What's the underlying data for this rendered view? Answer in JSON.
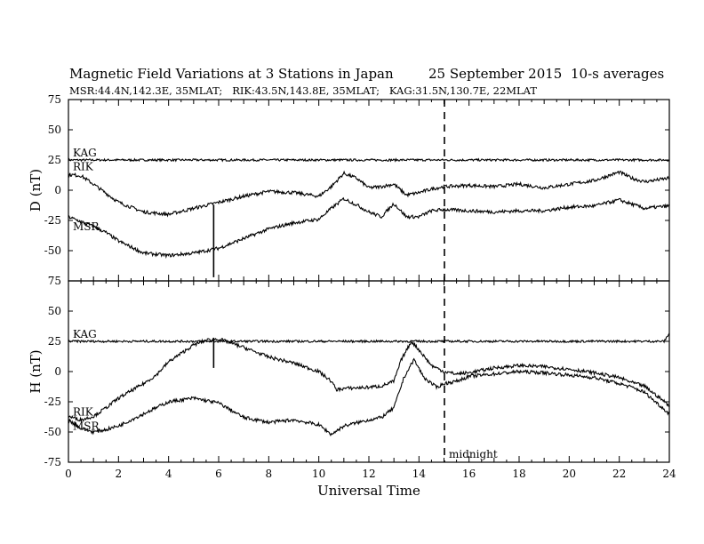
{
  "header": {
    "title": "Magnetic Field Variations at 3 Stations in Japan",
    "date": "25 September 2015",
    "averaging": "10-s averages",
    "stations_info": "MSR:44.4N,142.3E, 35MLAT;   RIK:43.5N,143.8E, 35MLAT;   KAG:31.5N,130.7E, 22MLAT"
  },
  "annotation": {
    "midnight_label": "midnight",
    "midnight_ut": 15.0
  },
  "chart_data": [
    {
      "type": "line",
      "panel": "D",
      "ylabel": "D (nT)",
      "xlabel": "Universal Time",
      "xlim": [
        0,
        24
      ],
      "ylim": [
        -75,
        75
      ],
      "xticks": [
        0,
        2,
        4,
        6,
        8,
        10,
        12,
        14,
        16,
        18,
        20,
        22,
        24
      ],
      "yticks": [
        75,
        50,
        25,
        0,
        -25,
        -50,
        -75
      ],
      "spike": {
        "x": 5.8,
        "y_range": [
          -12,
          -72
        ]
      },
      "series": [
        {
          "name": "KAG",
          "x": [
            0,
            2,
            4,
            6,
            8,
            10,
            12,
            14,
            16,
            18,
            20,
            22,
            24
          ],
          "values": [
            25,
            25,
            25,
            25,
            25,
            25,
            25,
            25,
            25,
            25,
            25,
            25,
            25
          ]
        },
        {
          "name": "RIK",
          "x": [
            0,
            0.5,
            1,
            2,
            3,
            4,
            5,
            6,
            7,
            8,
            9,
            10,
            10.5,
            11,
            11.5,
            12,
            12.5,
            13,
            13.5,
            14,
            14.5,
            15,
            16,
            17,
            18,
            19,
            20,
            21,
            22,
            22.5,
            23,
            24
          ],
          "values": [
            13,
            12,
            5,
            -10,
            -18,
            -20,
            -15,
            -10,
            -5,
            -1,
            -2,
            -5,
            3,
            14,
            10,
            2,
            3,
            5,
            -4,
            -2,
            1,
            3,
            4,
            3,
            5,
            2,
            5,
            8,
            15,
            10,
            7,
            10
          ]
        },
        {
          "name": "MSR",
          "x": [
            0,
            0.5,
            1,
            1.5,
            2,
            3,
            4,
            5,
            6,
            7,
            8,
            9,
            10,
            10.5,
            11,
            11.5,
            12,
            12.5,
            13,
            13.5,
            14,
            14.5,
            15,
            16,
            17,
            18,
            19,
            20,
            21,
            22,
            23,
            24
          ],
          "values": [
            -22,
            -26,
            -30,
            -35,
            -42,
            -52,
            -54,
            -52,
            -48,
            -40,
            -32,
            -27,
            -24,
            -15,
            -7,
            -12,
            -18,
            -22,
            -11,
            -22,
            -22,
            -17,
            -16,
            -17,
            -18,
            -17,
            -17,
            -14,
            -13,
            -8,
            -15,
            -13
          ]
        }
      ]
    },
    {
      "type": "line",
      "panel": "H",
      "ylabel": "H (nT)",
      "xlabel": "Universal Time",
      "xlim": [
        0,
        24
      ],
      "ylim": [
        -75,
        75
      ],
      "xticks": [
        0,
        2,
        4,
        6,
        8,
        10,
        12,
        14,
        16,
        18,
        20,
        22,
        24
      ],
      "yticks": [
        75,
        50,
        25,
        0,
        -25,
        -50,
        -75
      ],
      "spike": {
        "x": 5.8,
        "y_range": [
          28,
          3
        ]
      },
      "series": [
        {
          "name": "KAG",
          "x": [
            0,
            2,
            4,
            6,
            8,
            10,
            12,
            14,
            16,
            18,
            20,
            22,
            23.8,
            24
          ],
          "values": [
            25,
            25,
            25,
            25,
            25,
            25,
            25,
            25,
            25,
            25,
            25,
            25,
            25,
            32
          ]
        },
        {
          "name": "MSR",
          "x": [
            0,
            0.5,
            1,
            1.5,
            2,
            3,
            3.5,
            4,
            4.5,
            5,
            5.5,
            6,
            7,
            8,
            9,
            10,
            10.5,
            10.7,
            11,
            12,
            12.5,
            13,
            13.3,
            13.7,
            14,
            14.5,
            15,
            15.5,
            16,
            17,
            18,
            19,
            20,
            21,
            22,
            22.5,
            23,
            24
          ],
          "values": [
            -37,
            -40,
            -37,
            -30,
            -22,
            -10,
            -3,
            8,
            15,
            22,
            26,
            27,
            20,
            12,
            7,
            0,
            -8,
            -15,
            -14,
            -13,
            -12,
            -8,
            10,
            25,
            18,
            5,
            0,
            -2,
            -1,
            3,
            5,
            4,
            2,
            -1,
            -5,
            -9,
            -12,
            -28
          ]
        },
        {
          "name": "RIK",
          "x": [
            0,
            0.5,
            1,
            1.5,
            2,
            3,
            4,
            5,
            6,
            7,
            8,
            9,
            10,
            10.5,
            11,
            12,
            12.5,
            13,
            13.4,
            13.8,
            14.2,
            14.7,
            15,
            15.5,
            16,
            17,
            18,
            19,
            20,
            21,
            22,
            22.5,
            23,
            24
          ],
          "values": [
            -40,
            -47,
            -50,
            -48,
            -45,
            -35,
            -25,
            -22,
            -26,
            -38,
            -42,
            -40,
            -44,
            -52,
            -45,
            -40,
            -38,
            -30,
            -5,
            10,
            -5,
            -13,
            -10,
            -8,
            -4,
            -2,
            0,
            -1,
            -3,
            -5,
            -10,
            -13,
            -17,
            -35
          ]
        }
      ]
    }
  ]
}
